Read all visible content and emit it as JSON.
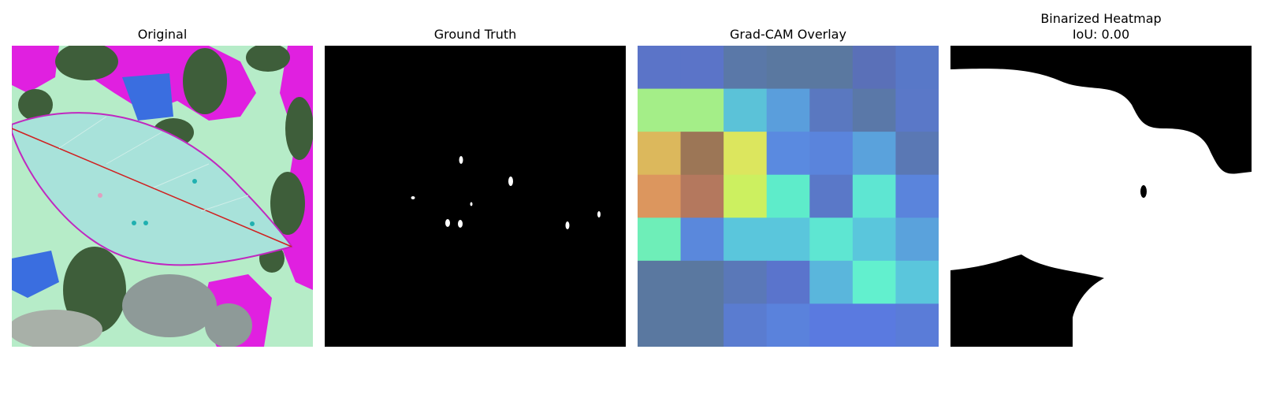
{
  "panels": [
    {
      "title": "Original"
    },
    {
      "title": "Ground Truth"
    },
    {
      "title": "Grad-CAM Overlay"
    },
    {
      "title": "Binarized Heatmap",
      "subtitle": "IoU: 0.00"
    }
  ],
  "colors": {
    "background": "#ffffff",
    "mask_foreground": "#ffffff",
    "mask_background": "#000000",
    "original_base": "#b6ecc8",
    "original_leaf": "#a8e2da",
    "original_magenta": "#e020e0",
    "original_dark_green": "#3e5e3a",
    "original_blue": "#3a6ee0"
  },
  "gradcam_grid": {
    "rows": 7,
    "cols": 7,
    "cells": [
      [
        "#5b74c8",
        "#5b74c8",
        "#5a78a8",
        "#5a78a0",
        "#5a78a0",
        "#5a70b8",
        "#5878c8"
      ],
      [
        "#a4ee88",
        "#a4ee88",
        "#5bc2d8",
        "#5a9edc",
        "#5a78c0",
        "#5a78a8",
        "#5a78c8"
      ],
      [
        "#dcb85c",
        "#9c7656",
        "#dce65e",
        "#5a8ae0",
        "#5a84dc",
        "#5aa2dc",
        "#5a78b4"
      ],
      [
        "#dc965e",
        "#b4785e",
        "#ccf060",
        "#5eecca",
        "#5a78c8",
        "#5ee6d2",
        "#5a84dc"
      ],
      [
        "#6eeeb8",
        "#5a88dc",
        "#5ac6dc",
        "#5ac6dc",
        "#5ee6d2",
        "#5ac6dc",
        "#5aa2dc"
      ],
      [
        "#5a78a0",
        "#5a78a0",
        "#5a78b8",
        "#5a74cc",
        "#5ab6dc",
        "#62f0ce",
        "#5ac6dc"
      ],
      [
        "#5a78a0",
        "#5a78a0",
        "#5a7cd0",
        "#5a82dc",
        "#5a7ae0",
        "#5a7ae0",
        "#5a7cd8"
      ]
    ]
  }
}
